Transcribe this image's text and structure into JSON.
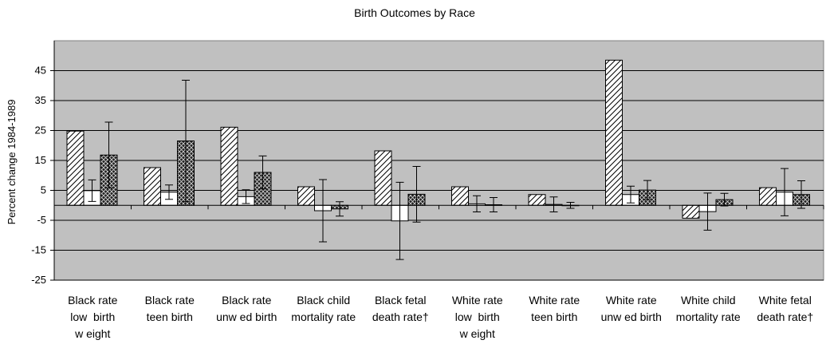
{
  "chart_data": {
    "type": "bar",
    "title": "Birth Outcomes by Race",
    "ylabel": "Percent change 1984-1989",
    "xlabel": "",
    "ylim": [
      -25,
      55
    ],
    "yticks": [
      45,
      35,
      25,
      15,
      5,
      -5,
      -15,
      -25
    ],
    "ytick_labels": [
      "45",
      "35",
      "25",
      "15",
      "5",
      "-5",
      "-15",
      "-25"
    ],
    "grid": true,
    "plot_background": "#c0c0c0",
    "categories": [
      [
        "Black rate",
        "low  birth",
        "w eight"
      ],
      [
        "Black rate",
        "teen birth"
      ],
      [
        "Black rate",
        "unw ed birth"
      ],
      [
        "Black child",
        "mortality rate"
      ],
      [
        "Black fetal",
        "death rate†"
      ],
      [
        "White rate",
        "low  birth",
        "w eight"
      ],
      [
        "White rate",
        "teen birth"
      ],
      [
        "White rate",
        "unw ed birth"
      ],
      [
        "White child",
        "mortality rate"
      ],
      [
        "White fetal",
        "death rate†"
      ]
    ],
    "series": [
      {
        "pattern": "diagonal",
        "values": [
          24.8,
          12.6,
          26.1,
          6.2,
          18.2,
          6.2,
          3.6,
          48.5,
          -4.3,
          5.9
        ],
        "error": [
          null,
          null,
          null,
          null,
          null,
          null,
          null,
          null,
          null,
          null
        ]
      },
      {
        "pattern": "white",
        "values": [
          4.9,
          4.4,
          2.9,
          -1.8,
          -5.2,
          0.5,
          0.3,
          3.6,
          -2.1,
          4.4
        ],
        "error": [
          3.6,
          2.4,
          2.3,
          10.4,
          12.9,
          2.7,
          2.5,
          2.8,
          6.2,
          7.9
        ]
      },
      {
        "pattern": "crosshatch",
        "values": [
          16.8,
          21.5,
          11.0,
          -1.2,
          3.7,
          0.2,
          0.0,
          5.1,
          1.9,
          3.6
        ],
        "error": [
          11.0,
          20.3,
          5.5,
          2.4,
          9.3,
          2.4,
          1.0,
          3.2,
          2.1,
          4.6
        ]
      }
    ]
  }
}
